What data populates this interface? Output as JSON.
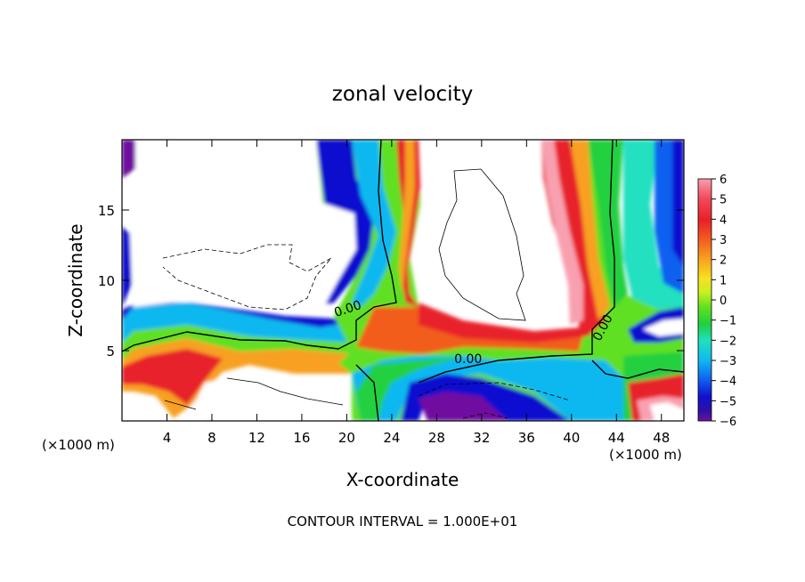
{
  "chart_data": {
    "type": "heatmap",
    "title": "zonal velocity",
    "xlabel": "X-coordinate",
    "ylabel": "Z-coordinate",
    "x_unit_label": "(×1000 m)",
    "x_unit_label_right": "(×1000 m)",
    "footer": "CONTOUR INTERVAL = 1.000E+01",
    "xlim": [
      0,
      50
    ],
    "ylim": [
      0,
      20
    ],
    "x_ticks": [
      4,
      8,
      12,
      16,
      20,
      24,
      28,
      32,
      36,
      40,
      44,
      48
    ],
    "y_ticks": [
      5,
      10,
      15
    ],
    "colorbar": {
      "labels": [
        "6",
        "5",
        "4",
        "3",
        "2",
        "1",
        "0",
        "−1",
        "−2",
        "−3",
        "−4",
        "−5",
        "−6"
      ],
      "range": [
        -6,
        6
      ],
      "colors": [
        "#f8a0b0",
        "#f24a5a",
        "#e8202a",
        "#f25d1e",
        "#f8a020",
        "#f8e020",
        "#c8f020",
        "#60e020",
        "#20d040",
        "#20e0c0",
        "#10b8f0",
        "#1060f0",
        "#1010d0",
        "#3010a0",
        "#7010a0"
      ]
    },
    "contour_labels": [
      {
        "text": "0.00",
        "x": 20.2,
        "z": 7.7
      },
      {
        "text": "0.00",
        "x": 30.8,
        "z": 4.1
      },
      {
        "text": "0.00",
        "x": 43.1,
        "z": 6.5
      }
    ],
    "grid": false
  }
}
